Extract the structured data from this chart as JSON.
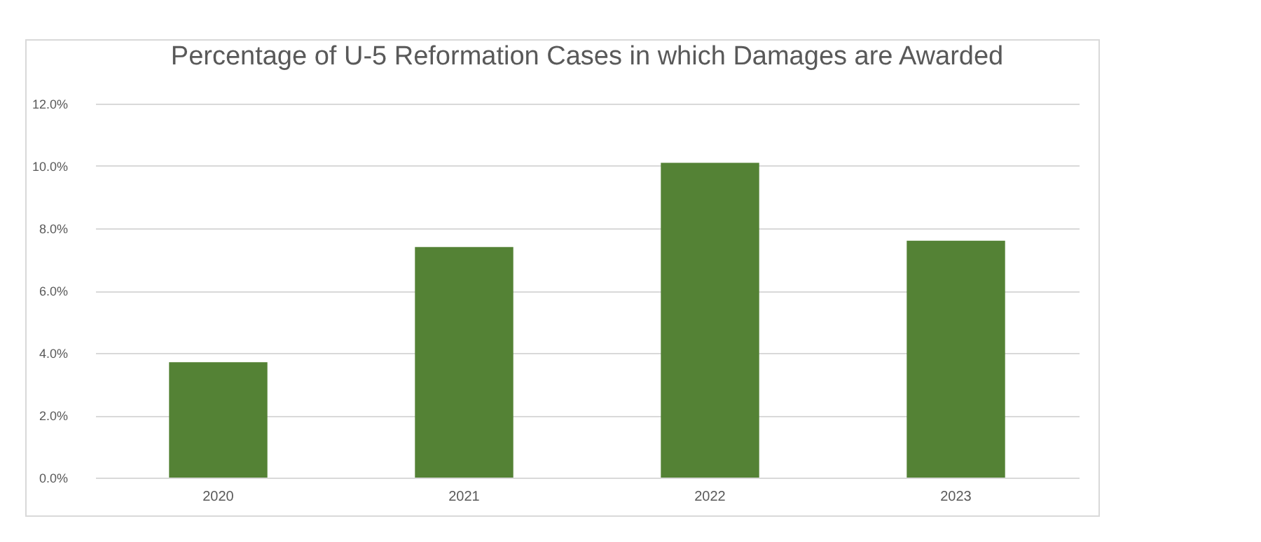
{
  "chart_data": {
    "type": "bar",
    "title": "Percentage of U-5 Reformation Cases in which Damages are Awarded",
    "categories": [
      "2020",
      "2021",
      "2022",
      "2023"
    ],
    "values": [
      3.7,
      7.4,
      10.1,
      7.6
    ],
    "color": "#548235",
    "ylim": [
      0,
      12
    ],
    "yticks": [
      {
        "value": 0,
        "label": "0.0%"
      },
      {
        "value": 2,
        "label": "2.0%"
      },
      {
        "value": 4,
        "label": "4.0%"
      },
      {
        "value": 6,
        "label": "6.0%"
      },
      {
        "value": 8,
        "label": "8.0%"
      },
      {
        "value": 10,
        "label": "10.0%"
      },
      {
        "value": 12,
        "label": "12.0%"
      }
    ],
    "grid": true
  }
}
